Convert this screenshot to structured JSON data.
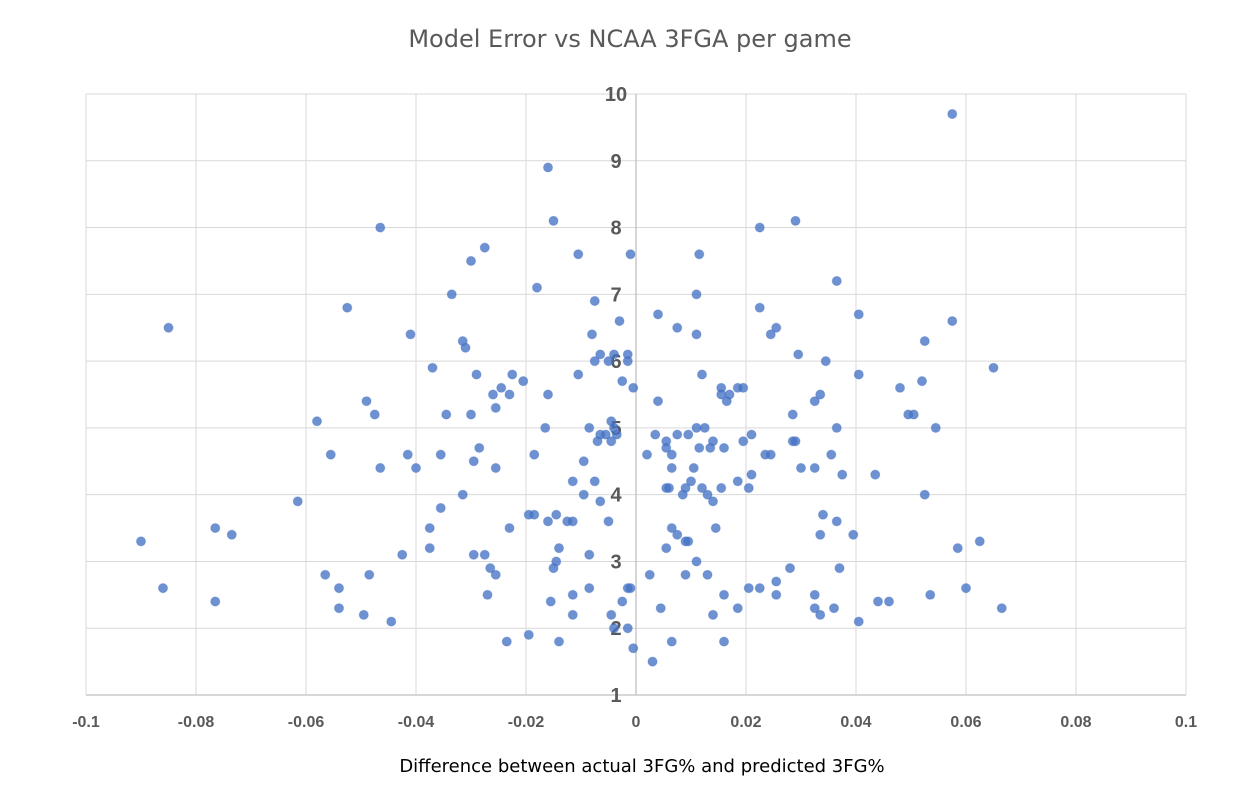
{
  "chart_data": {
    "type": "scatter",
    "title": "Model Error vs NCAA 3FGA per game",
    "xlabel": "Difference between actual 3FG% and predicted 3FG%",
    "ylabel": "",
    "xlim": [
      -0.1,
      0.1
    ],
    "ylim": [
      1,
      10
    ],
    "x_ticks": [
      "-0.1",
      "-0.08",
      "-0.06",
      "-0.04",
      "-0.02",
      "0",
      "0.02",
      "0.04",
      "0.06",
      "0.08",
      "0.1"
    ],
    "y_ticks": [
      "1",
      "2",
      "3",
      "4",
      "5",
      "6",
      "7",
      "8",
      "9",
      "10"
    ],
    "grid": true,
    "legend": "none",
    "color": "#4472c4",
    "points": [
      [
        0.0575,
        9.7
      ],
      [
        -0.016,
        8.9
      ],
      [
        -0.015,
        8.1
      ],
      [
        0.029,
        8.1
      ],
      [
        -0.0465,
        8.0
      ],
      [
        0.0225,
        8.0
      ],
      [
        -0.0275,
        7.7
      ],
      [
        -0.0105,
        7.6
      ],
      [
        -0.001,
        7.6
      ],
      [
        0.0115,
        7.6
      ],
      [
        -0.03,
        7.5
      ],
      [
        0.0365,
        7.2
      ],
      [
        -0.018,
        7.1
      ],
      [
        -0.0335,
        7.0
      ],
      [
        0.011,
        7.0
      ],
      [
        -0.0075,
        6.9
      ],
      [
        -0.0525,
        6.8
      ],
      [
        0.0225,
        6.8
      ],
      [
        0.004,
        6.7
      ],
      [
        0.0405,
        6.7
      ],
      [
        -0.003,
        6.6
      ],
      [
        0.0575,
        6.6
      ],
      [
        -0.085,
        6.5
      ],
      [
        0.0075,
        6.5
      ],
      [
        0.0255,
        6.5
      ],
      [
        -0.041,
        6.4
      ],
      [
        -0.008,
        6.4
      ],
      [
        0.011,
        6.4
      ],
      [
        0.0245,
        6.4
      ],
      [
        -0.0315,
        6.3
      ],
      [
        0.0525,
        6.3
      ],
      [
        -0.031,
        6.2
      ],
      [
        -0.0065,
        6.1
      ],
      [
        -0.004,
        6.1
      ],
      [
        -0.0015,
        6.1
      ],
      [
        0.0295,
        6.1
      ],
      [
        -0.0075,
        6.0
      ],
      [
        -0.005,
        6.0
      ],
      [
        -0.0015,
        6.0
      ],
      [
        0.0345,
        6.0
      ],
      [
        -0.037,
        5.9
      ],
      [
        0.065,
        5.9
      ],
      [
        -0.029,
        5.8
      ],
      [
        -0.0225,
        5.8
      ],
      [
        -0.0105,
        5.8
      ],
      [
        0.012,
        5.8
      ],
      [
        0.0405,
        5.8
      ],
      [
        -0.0025,
        5.7
      ],
      [
        -0.0205,
        5.7
      ],
      [
        0.052,
        5.7
      ],
      [
        -0.0245,
        5.6
      ],
      [
        -0.0005,
        5.6
      ],
      [
        0.0155,
        5.6
      ],
      [
        0.0185,
        5.6
      ],
      [
        0.0195,
        5.6
      ],
      [
        0.048,
        5.6
      ],
      [
        -0.026,
        5.5
      ],
      [
        -0.023,
        5.5
      ],
      [
        -0.016,
        5.5
      ],
      [
        0.0155,
        5.5
      ],
      [
        0.017,
        5.5
      ],
      [
        0.0335,
        5.5
      ],
      [
        -0.049,
        5.4
      ],
      [
        0.004,
        5.4
      ],
      [
        0.0165,
        5.4
      ],
      [
        0.0325,
        5.4
      ],
      [
        -0.0255,
        5.3
      ],
      [
        -0.0475,
        5.2
      ],
      [
        -0.0345,
        5.2
      ],
      [
        -0.03,
        5.2
      ],
      [
        0.0285,
        5.2
      ],
      [
        0.0495,
        5.2
      ],
      [
        0.0505,
        5.2
      ],
      [
        -0.058,
        5.1
      ],
      [
        -0.0045,
        5.1
      ],
      [
        -0.0555,
        4.6
      ],
      [
        -0.0165,
        5.0
      ],
      [
        -0.0085,
        5.0
      ],
      [
        -0.004,
        5.0
      ],
      [
        0.011,
        5.0
      ],
      [
        0.0125,
        5.0
      ],
      [
        0.0365,
        5.0
      ],
      [
        0.0545,
        5.0
      ],
      [
        -0.0065,
        4.9
      ],
      [
        -0.0055,
        4.9
      ],
      [
        -0.0035,
        4.9
      ],
      [
        0.0035,
        4.9
      ],
      [
        0.0075,
        4.9
      ],
      [
        0.0095,
        4.9
      ],
      [
        0.021,
        4.9
      ],
      [
        -0.007,
        4.8
      ],
      [
        -0.0045,
        4.8
      ],
      [
        0.0055,
        4.8
      ],
      [
        0.014,
        4.8
      ],
      [
        0.0195,
        4.8
      ],
      [
        0.0285,
        4.8
      ],
      [
        0.029,
        4.8
      ],
      [
        -0.0285,
        4.7
      ],
      [
        0.0055,
        4.7
      ],
      [
        0.0115,
        4.7
      ],
      [
        0.0135,
        4.7
      ],
      [
        0.016,
        4.7
      ],
      [
        -0.0415,
        4.6
      ],
      [
        -0.0355,
        4.6
      ],
      [
        -0.0185,
        4.6
      ],
      [
        0.002,
        4.6
      ],
      [
        0.0065,
        4.6
      ],
      [
        0.0235,
        4.6
      ],
      [
        0.0245,
        4.6
      ],
      [
        0.0355,
        4.6
      ],
      [
        -0.0295,
        4.5
      ],
      [
        -0.0095,
        4.5
      ],
      [
        -0.0465,
        4.4
      ],
      [
        -0.04,
        4.4
      ],
      [
        -0.0255,
        4.4
      ],
      [
        0.0065,
        4.4
      ],
      [
        0.0105,
        4.4
      ],
      [
        0.03,
        4.4
      ],
      [
        0.0325,
        4.4
      ],
      [
        0.021,
        4.3
      ],
      [
        0.0375,
        4.3
      ],
      [
        0.0435,
        4.3
      ],
      [
        -0.0115,
        4.2
      ],
      [
        -0.0075,
        4.2
      ],
      [
        0.01,
        4.2
      ],
      [
        0.0185,
        4.2
      ],
      [
        0.0055,
        4.1
      ],
      [
        0.006,
        4.1
      ],
      [
        0.009,
        4.1
      ],
      [
        0.012,
        4.1
      ],
      [
        0.0155,
        4.1
      ],
      [
        0.0205,
        4.1
      ],
      [
        -0.0315,
        4.0
      ],
      [
        -0.0095,
        4.0
      ],
      [
        0.0085,
        4.0
      ],
      [
        0.013,
        4.0
      ],
      [
        0.0525,
        4.0
      ],
      [
        -0.0615,
        3.9
      ],
      [
        -0.0065,
        3.9
      ],
      [
        0.014,
        3.9
      ],
      [
        -0.0355,
        3.8
      ],
      [
        -0.0195,
        3.7
      ],
      [
        -0.0185,
        3.7
      ],
      [
        -0.0145,
        3.7
      ],
      [
        0.034,
        3.7
      ],
      [
        -0.0765,
        3.5
      ],
      [
        -0.0375,
        3.5
      ],
      [
        -0.023,
        3.5
      ],
      [
        -0.016,
        3.6
      ],
      [
        -0.0125,
        3.6
      ],
      [
        -0.0115,
        3.6
      ],
      [
        -0.005,
        3.6
      ],
      [
        0.0065,
        3.5
      ],
      [
        0.0145,
        3.5
      ],
      [
        0.0365,
        3.6
      ],
      [
        -0.0735,
        3.4
      ],
      [
        0.0075,
        3.4
      ],
      [
        0.0335,
        3.4
      ],
      [
        0.0395,
        3.4
      ],
      [
        -0.09,
        3.3
      ],
      [
        0.009,
        3.3
      ],
      [
        0.0095,
        3.3
      ],
      [
        0.0625,
        3.3
      ],
      [
        -0.0375,
        3.2
      ],
      [
        -0.014,
        3.2
      ],
      [
        0.0055,
        3.2
      ],
      [
        0.0585,
        3.2
      ],
      [
        -0.0425,
        3.1
      ],
      [
        -0.0295,
        3.1
      ],
      [
        -0.0275,
        3.1
      ],
      [
        -0.0085,
        3.1
      ],
      [
        -0.0145,
        3.0
      ],
      [
        0.011,
        3.0
      ],
      [
        -0.0565,
        2.8
      ],
      [
        -0.0265,
        2.9
      ],
      [
        -0.015,
        2.9
      ],
      [
        0.037,
        2.9
      ],
      [
        0.028,
        2.9
      ],
      [
        -0.0485,
        2.8
      ],
      [
        -0.0255,
        2.8
      ],
      [
        0.0025,
        2.8
      ],
      [
        0.009,
        2.8
      ],
      [
        0.013,
        2.8
      ],
      [
        0.0255,
        2.7
      ],
      [
        -0.086,
        2.6
      ],
      [
        -0.054,
        2.6
      ],
      [
        -0.0085,
        2.6
      ],
      [
        -0.0015,
        2.6
      ],
      [
        -0.001,
        2.6
      ],
      [
        0.0205,
        2.6
      ],
      [
        0.0225,
        2.6
      ],
      [
        0.06,
        2.6
      ],
      [
        -0.027,
        2.5
      ],
      [
        -0.0115,
        2.5
      ],
      [
        0.016,
        2.5
      ],
      [
        0.0255,
        2.5
      ],
      [
        0.0325,
        2.5
      ],
      [
        0.0535,
        2.5
      ],
      [
        -0.0765,
        2.4
      ],
      [
        -0.0155,
        2.4
      ],
      [
        -0.0025,
        2.4
      ],
      [
        0.044,
        2.4
      ],
      [
        0.046,
        2.4
      ],
      [
        -0.054,
        2.3
      ],
      [
        0.0045,
        2.3
      ],
      [
        0.0185,
        2.3
      ],
      [
        0.0325,
        2.3
      ],
      [
        0.036,
        2.3
      ],
      [
        0.0665,
        2.3
      ],
      [
        -0.0495,
        2.2
      ],
      [
        -0.0115,
        2.2
      ],
      [
        -0.0045,
        2.2
      ],
      [
        0.014,
        2.2
      ],
      [
        0.0335,
        2.2
      ],
      [
        -0.0445,
        2.1
      ],
      [
        0.0405,
        2.1
      ],
      [
        -0.004,
        2.0
      ],
      [
        -0.0015,
        2.0
      ],
      [
        -0.0195,
        1.9
      ],
      [
        -0.0235,
        1.8
      ],
      [
        -0.014,
        1.8
      ],
      [
        0.0065,
        1.8
      ],
      [
        0.016,
        1.8
      ],
      [
        -0.0005,
        1.7
      ],
      [
        0.003,
        1.5
      ]
    ]
  }
}
